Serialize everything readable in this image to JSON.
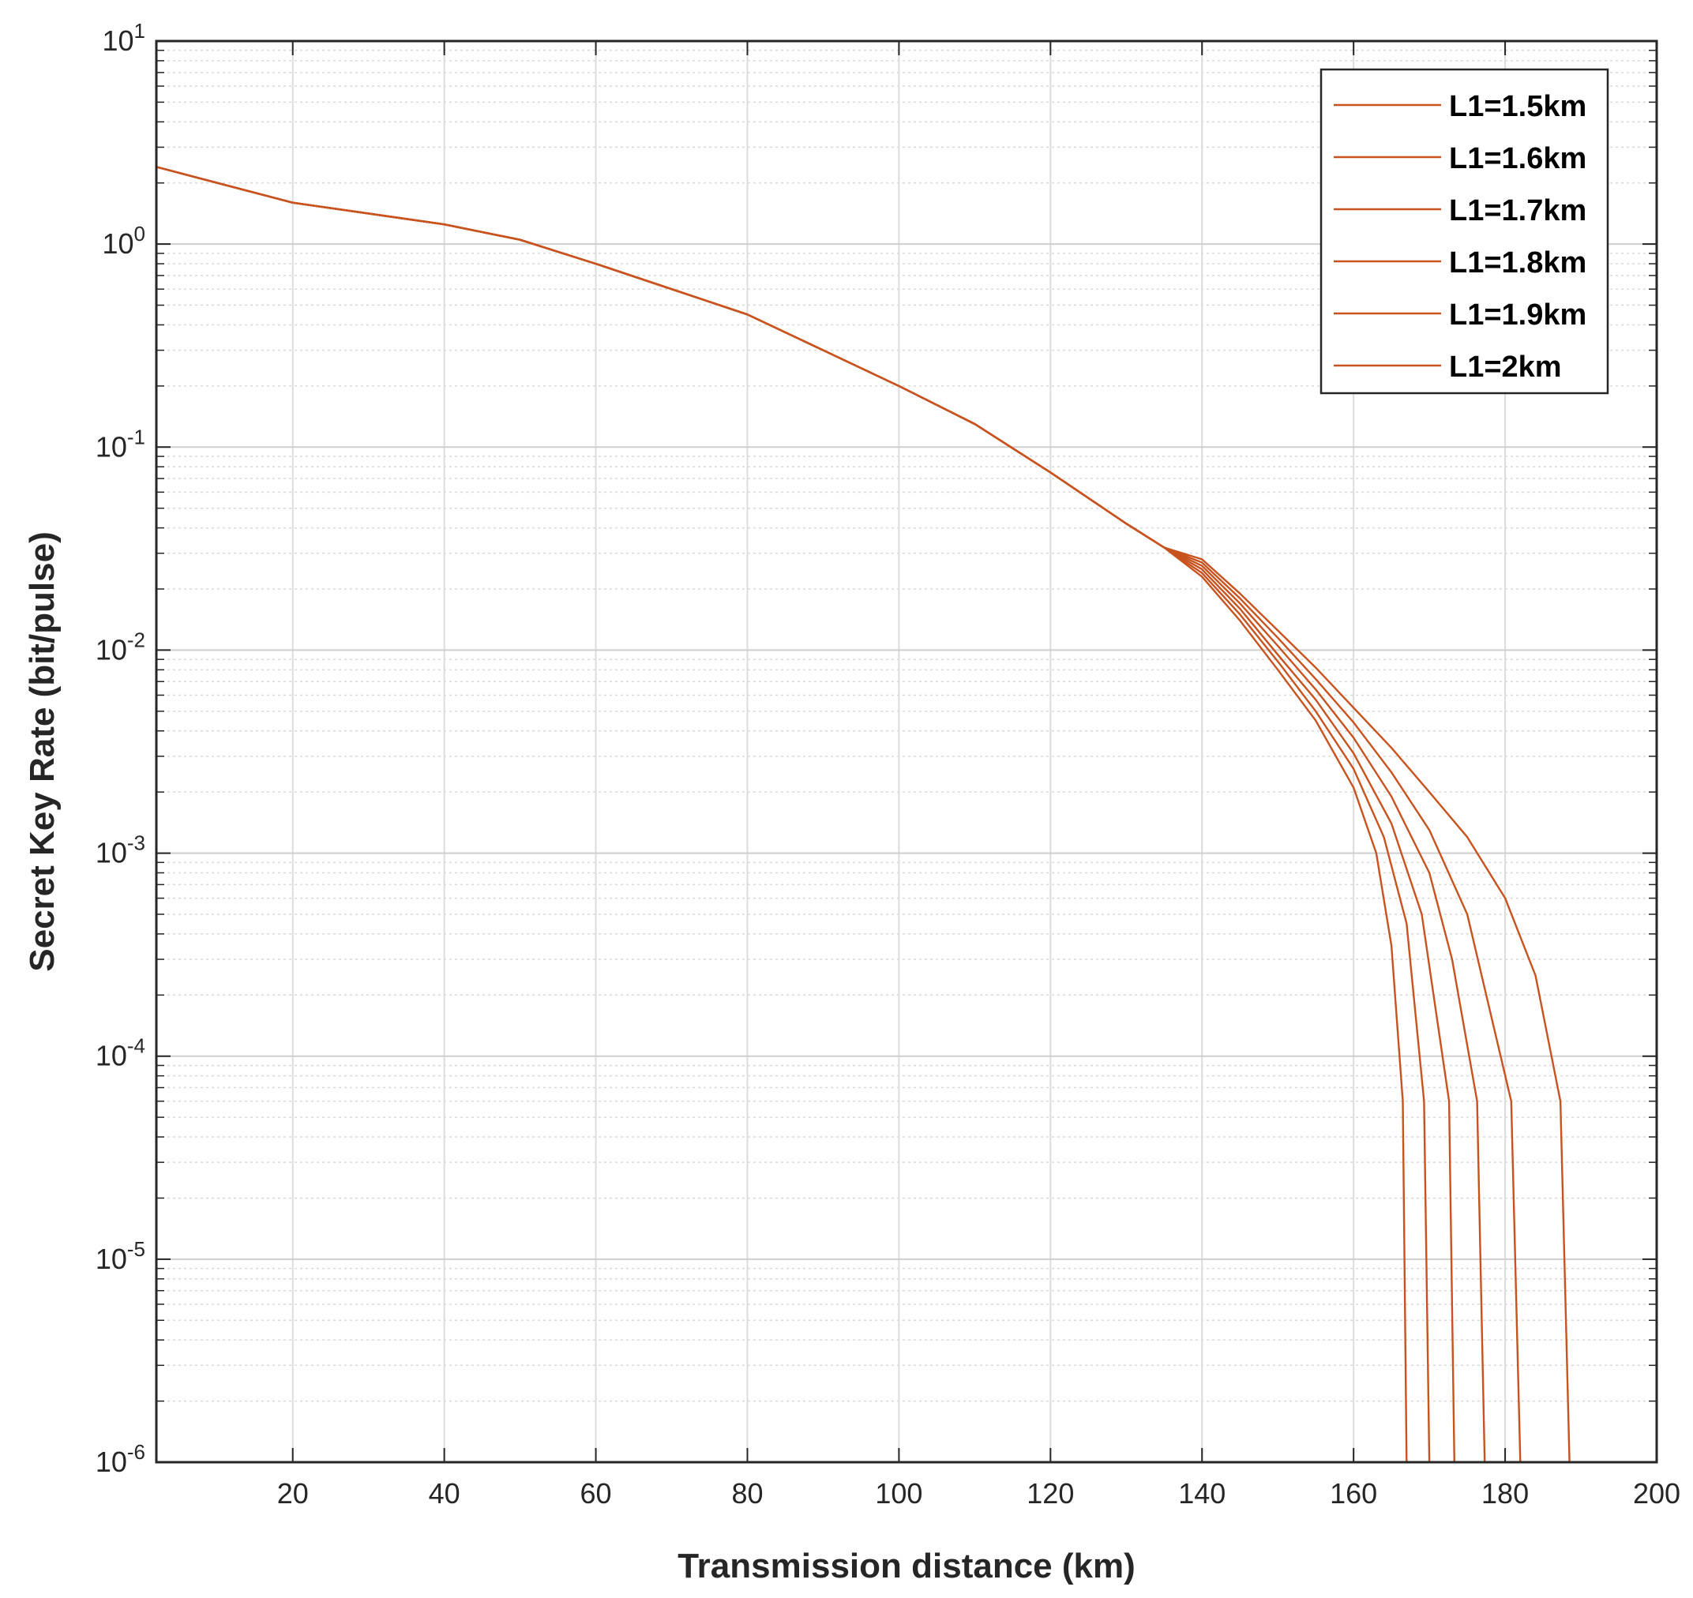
{
  "chart_data": {
    "type": "line",
    "xlabel": "Transmission distance (km)",
    "ylabel": "Secret Key Rate (bit/pulse)",
    "xlim": [
      2,
      200
    ],
    "ylim": [
      1e-06,
      10
    ],
    "yscale": "log",
    "grid": true,
    "minor_grid": true,
    "legend_position": "top-right",
    "x_ticks": [
      20,
      40,
      60,
      80,
      100,
      120,
      140,
      160,
      180,
      200
    ],
    "x_tick_labels": [
      "20",
      "40",
      "60",
      "80",
      "100",
      "120",
      "140",
      "160",
      "180",
      "200"
    ],
    "y_ticks": [
      {
        "value": 1e-06,
        "base": "10",
        "exp": "-6"
      },
      {
        "value": 1e-05,
        "base": "10",
        "exp": "-5"
      },
      {
        "value": 0.0001,
        "base": "10",
        "exp": "-4"
      },
      {
        "value": 0.001,
        "base": "10",
        "exp": "-3"
      },
      {
        "value": 0.01,
        "base": "10",
        "exp": "-2"
      },
      {
        "value": 0.1,
        "base": "10",
        "exp": "-1"
      },
      {
        "value": 1,
        "base": "10",
        "exp": "0"
      },
      {
        "value": 10,
        "base": "10",
        "exp": "1"
      }
    ],
    "line_color": "#c8531f",
    "shared_start": [
      [
        2,
        2.4
      ],
      [
        20,
        1.6
      ],
      [
        40,
        1.25
      ],
      [
        50,
        1.05
      ],
      [
        60,
        0.8
      ],
      [
        70,
        0.6
      ],
      [
        80,
        0.45
      ],
      [
        90,
        0.3
      ],
      [
        100,
        0.2
      ],
      [
        110,
        0.13
      ],
      [
        120,
        0.075
      ],
      [
        130,
        0.042
      ]
    ],
    "series": [
      {
        "name": "L1=1.5km",
        "values": [
          [
            135,
            0.032
          ],
          [
            140,
            0.023
          ],
          [
            145,
            0.014
          ],
          [
            150,
            0.008
          ],
          [
            155,
            0.0045
          ],
          [
            160,
            0.0021
          ],
          [
            163,
            0.001
          ],
          [
            165,
            0.00035
          ],
          [
            166.5,
            6e-05
          ],
          [
            167,
            1e-06
          ]
        ]
      },
      {
        "name": "L1=1.6km",
        "values": [
          [
            135,
            0.032
          ],
          [
            140,
            0.024
          ],
          [
            145,
            0.015
          ],
          [
            150,
            0.0088
          ],
          [
            155,
            0.005
          ],
          [
            160,
            0.0026
          ],
          [
            164,
            0.0012
          ],
          [
            167,
            0.00045
          ],
          [
            169.3,
            6e-05
          ],
          [
            170,
            1e-06
          ]
        ]
      },
      {
        "name": "L1=1.7km",
        "values": [
          [
            135,
            0.032
          ],
          [
            140,
            0.025
          ],
          [
            145,
            0.016
          ],
          [
            150,
            0.0095
          ],
          [
            155,
            0.0057
          ],
          [
            160,
            0.0031
          ],
          [
            165,
            0.0014
          ],
          [
            169,
            0.0005
          ],
          [
            172.6,
            6e-05
          ],
          [
            173.3,
            1e-06
          ]
        ]
      },
      {
        "name": "L1=1.8km",
        "values": [
          [
            135,
            0.032
          ],
          [
            140,
            0.026
          ],
          [
            145,
            0.017
          ],
          [
            150,
            0.0105
          ],
          [
            155,
            0.0064
          ],
          [
            160,
            0.0037
          ],
          [
            165,
            0.0019
          ],
          [
            170,
            0.0008
          ],
          [
            173,
            0.0003
          ],
          [
            176.3,
            6e-05
          ],
          [
            177.3,
            1e-06
          ]
        ]
      },
      {
        "name": "L1=1.9km",
        "values": [
          [
            135,
            0.032
          ],
          [
            140,
            0.027
          ],
          [
            145,
            0.018
          ],
          [
            150,
            0.0115
          ],
          [
            155,
            0.0072
          ],
          [
            160,
            0.0044
          ],
          [
            165,
            0.0025
          ],
          [
            170,
            0.0013
          ],
          [
            175,
            0.0005
          ],
          [
            180.8,
            6e-05
          ],
          [
            182,
            1e-06
          ]
        ]
      },
      {
        "name": "L1=2km",
        "values": [
          [
            135,
            0.032
          ],
          [
            140,
            0.028
          ],
          [
            145,
            0.019
          ],
          [
            150,
            0.0125
          ],
          [
            155,
            0.0082
          ],
          [
            160,
            0.0052
          ],
          [
            165,
            0.0033
          ],
          [
            170,
            0.002
          ],
          [
            175,
            0.0012
          ],
          [
            180,
            0.0006
          ],
          [
            184,
            0.00025
          ],
          [
            187.3,
            6e-05
          ],
          [
            188.5,
            1e-06
          ]
        ]
      }
    ]
  }
}
